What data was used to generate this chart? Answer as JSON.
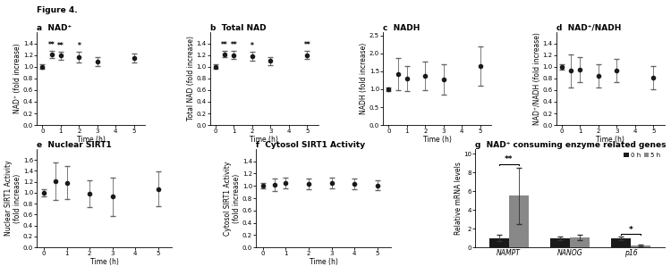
{
  "panel_a": {
    "label": "a  NAD⁺",
    "x": [
      0,
      0.5,
      1,
      2,
      3,
      5
    ],
    "y": [
      1.0,
      1.21,
      1.19,
      1.17,
      1.09,
      1.15
    ],
    "yerr": [
      0.04,
      0.06,
      0.07,
      0.09,
      0.07,
      0.08
    ],
    "stars": [
      "",
      "**",
      "**",
      "*",
      "",
      ""
    ],
    "ylabel": "NAD⁺ (fold increase)",
    "ylim": [
      0.0,
      1.6
    ],
    "yticks": [
      0.0,
      0.2,
      0.4,
      0.6,
      0.8,
      1.0,
      1.2,
      1.4
    ]
  },
  "panel_b": {
    "label": "b  Total NAD",
    "x": [
      0,
      0.5,
      1,
      2,
      3,
      5
    ],
    "y": [
      1.0,
      1.22,
      1.2,
      1.18,
      1.1,
      1.2
    ],
    "yerr": [
      0.04,
      0.06,
      0.07,
      0.08,
      0.07,
      0.07
    ],
    "stars": [
      "",
      "**",
      "**",
      "*",
      "",
      "**"
    ],
    "ylabel": "Total NAD (fold increase)",
    "ylim": [
      0.0,
      1.6
    ],
    "yticks": [
      0.0,
      0.2,
      0.4,
      0.6,
      0.8,
      1.0,
      1.2,
      1.4
    ]
  },
  "panel_c": {
    "label": "c  NADH",
    "x": [
      0,
      0.5,
      1,
      2,
      3,
      5
    ],
    "y": [
      1.0,
      1.42,
      1.3,
      1.37,
      1.28,
      1.65
    ],
    "yerr": [
      0.05,
      0.45,
      0.35,
      0.4,
      0.42,
      0.55
    ],
    "stars": [
      "",
      "",
      "",
      "",
      "",
      ""
    ],
    "ylabel": "NADH (fold increase)",
    "ylim": [
      0.0,
      2.6
    ],
    "yticks": [
      0.0,
      0.5,
      1.0,
      1.5,
      2.0,
      2.5
    ]
  },
  "panel_d": {
    "label": "d  NAD⁺/NADH",
    "x": [
      0,
      0.5,
      1,
      2,
      3,
      5
    ],
    "y": [
      1.0,
      0.93,
      0.95,
      0.84,
      0.93,
      0.82
    ],
    "yerr": [
      0.05,
      0.28,
      0.22,
      0.2,
      0.2,
      0.2
    ],
    "stars": [
      "",
      "",
      "",
      "",
      "",
      ""
    ],
    "ylabel": "NAD⁺/NADH (fold increase)",
    "ylim": [
      0.0,
      1.6
    ],
    "yticks": [
      0.0,
      0.2,
      0.4,
      0.6,
      0.8,
      1.0,
      1.2,
      1.4
    ]
  },
  "panel_e": {
    "label": "e  Nuclear SIRT1",
    "x": [
      0,
      0.5,
      1,
      2,
      3,
      5
    ],
    "y": [
      1.0,
      1.21,
      1.18,
      0.98,
      0.93,
      1.07
    ],
    "yerr": [
      0.06,
      0.35,
      0.3,
      0.25,
      0.35,
      0.32
    ],
    "stars": [
      "",
      "",
      "",
      "",
      "",
      ""
    ],
    "ylabel": "Nuclear SIRT1 Activity\n(fold increase)",
    "ylim": [
      0.0,
      1.8
    ],
    "yticks": [
      0.0,
      0.2,
      0.4,
      0.6,
      0.8,
      1.0,
      1.2,
      1.4,
      1.6
    ]
  },
  "panel_f": {
    "label": "f  Cytosol SIRT1 Activity",
    "x": [
      0,
      0.5,
      1,
      2,
      3,
      4,
      5
    ],
    "y": [
      1.0,
      1.02,
      1.05,
      1.03,
      1.05,
      1.03,
      1.01
    ],
    "yerr": [
      0.04,
      0.1,
      0.09,
      0.09,
      0.09,
      0.09,
      0.08
    ],
    "stars": [
      "",
      "",
      "",
      "",
      "",
      "",
      ""
    ],
    "ylabel": "Cytosol SIRT1 Activity\n(fold increase)",
    "ylim": [
      0.0,
      1.6
    ],
    "yticks": [
      0.0,
      0.2,
      0.4,
      0.6,
      0.8,
      1.0,
      1.2,
      1.4
    ]
  },
  "panel_g": {
    "label": "g  NAD⁺ consuming enzyme related genes",
    "categories": [
      "NAMPT",
      "NANOG",
      "p16"
    ],
    "values_0h": [
      1.0,
      1.0,
      1.0
    ],
    "values_5h": [
      5.5,
      1.05,
      0.22
    ],
    "err_0h": [
      0.35,
      0.2,
      0.18
    ],
    "err_5h": [
      3.0,
      0.28,
      0.12
    ],
    "stars_above": [
      "**",
      "",
      "*"
    ],
    "ylabel": "Relative mRNA levels",
    "ylim": [
      0.0,
      10.5
    ],
    "yticks": [
      0.0,
      2.0,
      4.0,
      6.0,
      8.0,
      10.0
    ],
    "legend": [
      "0 h",
      "5 h"
    ],
    "color_0h": "#1a1a1a",
    "color_5h": "#888888"
  },
  "xlabel": "Time (h)",
  "line_color": "#1a1a1a",
  "marker": "o",
  "markersize": 3,
  "capsize": 2,
  "ecolor": "#666666",
  "figure_label": "Figure 4.",
  "title_fontsize": 6.5,
  "label_fontsize": 5.5,
  "tick_fontsize": 5.0
}
